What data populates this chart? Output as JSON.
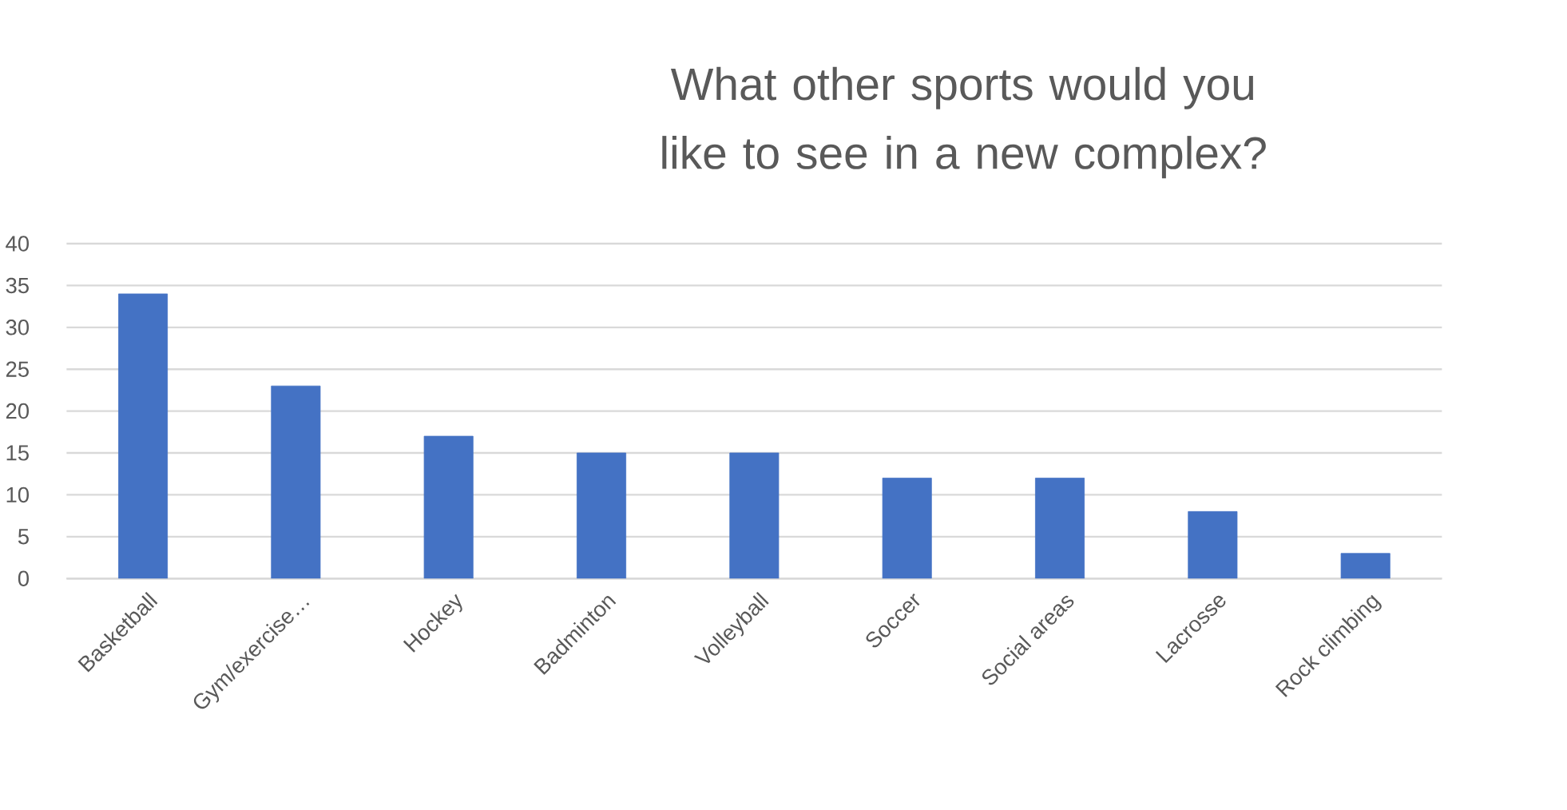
{
  "chart_data": {
    "type": "bar",
    "title": "What other sports would you like to see in a new complex?",
    "categories": [
      "Basketball",
      "Gym/exercise…",
      "Hockey",
      "Badminton",
      "Volleyball",
      "Soccer",
      "Social areas",
      "Lacrosse",
      "Rock climbing"
    ],
    "values": [
      34,
      23,
      17,
      15,
      15,
      12,
      12,
      8,
      3
    ],
    "color": "#4472c4",
    "ylim": [
      0,
      40
    ],
    "yticks": [
      0,
      5,
      10,
      15,
      20,
      25,
      30,
      35,
      40
    ],
    "grid": "y"
  }
}
